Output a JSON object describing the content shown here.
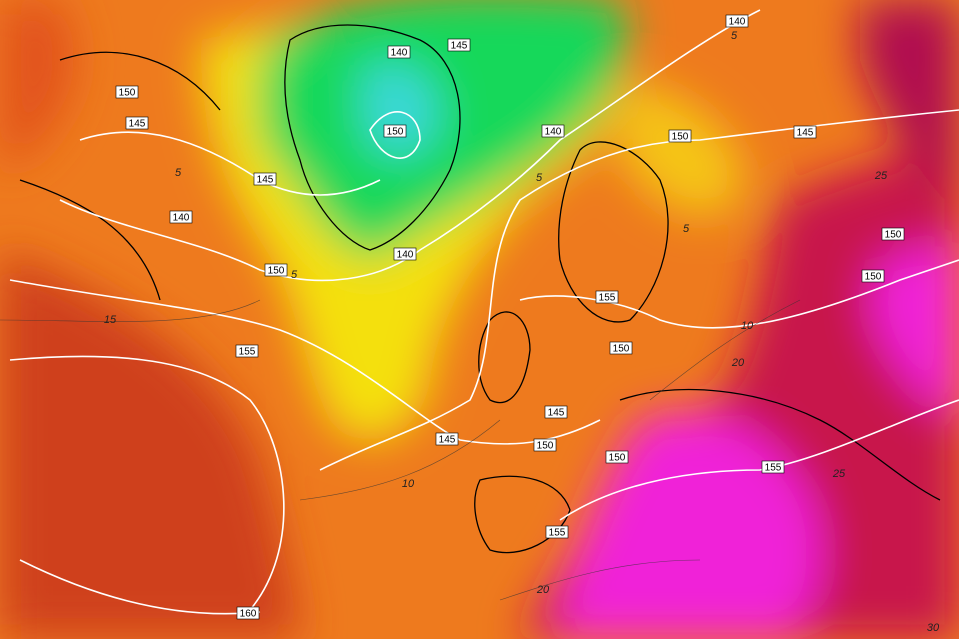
{
  "map": {
    "height_labels": [
      140,
      145,
      140,
      150,
      145,
      150,
      140,
      150,
      145,
      145,
      140,
      150,
      140,
      150,
      150,
      155,
      150,
      155,
      145,
      145,
      150,
      150,
      155,
      155,
      160
    ],
    "temperature_labels": [
      5,
      15,
      10,
      5,
      5,
      10,
      20,
      25,
      25,
      20,
      30,
      5,
      5
    ]
  }
}
